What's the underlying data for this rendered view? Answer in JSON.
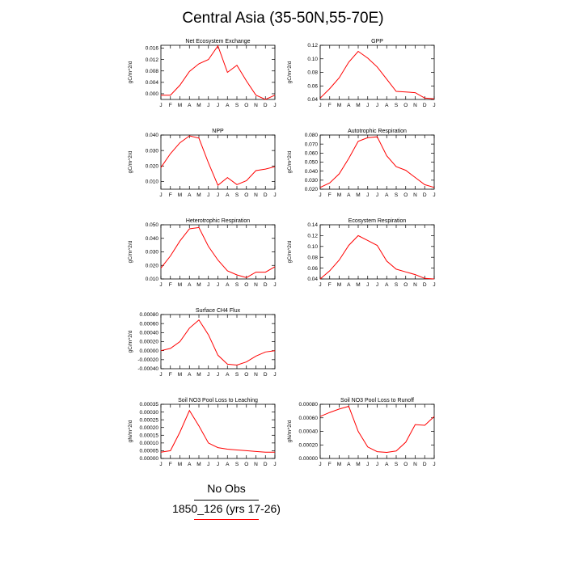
{
  "title": "Central Asia (35-50N,55-70E)",
  "legend": [
    {
      "label": "No Obs",
      "color": "#000000"
    },
    {
      "label": "1850_126 (yrs 17-26)",
      "color": "#ff0000"
    }
  ],
  "chart_data": [
    {
      "type": "line",
      "title": "Net Ecosystem Exchange",
      "ylabel": "gC/m^2/d",
      "categories": [
        "J",
        "F",
        "M",
        "A",
        "M",
        "J",
        "J",
        "A",
        "S",
        "O",
        "N",
        "D",
        "J"
      ],
      "ylim": [
        -0.002,
        0.017
      ],
      "yticks": [
        "0.016",
        "0.012",
        "0.008",
        "0.004",
        "0.000"
      ],
      "ytick_values": [
        0.016,
        0.012,
        0.008,
        0.004,
        0.0
      ],
      "series": [
        {
          "color": "#ff0000",
          "values": [
            -0.0005,
            -0.0005,
            0.003,
            0.0078,
            0.0105,
            0.012,
            0.0168,
            0.0075,
            0.01,
            0.0045,
            -0.0005,
            -0.002,
            -0.0005
          ]
        }
      ]
    },
    {
      "type": "line",
      "title": "GPP",
      "ylabel": "gC/m^2/d",
      "categories": [
        "J",
        "F",
        "M",
        "A",
        "M",
        "J",
        "J",
        "A",
        "S",
        "O",
        "N",
        "D",
        "J"
      ],
      "ylim": [
        0.04,
        0.12
      ],
      "yticks": [
        "0.12",
        "0.10",
        "0.08",
        "0.06",
        "0.04"
      ],
      "ytick_values": [
        0.12,
        0.1,
        0.08,
        0.06,
        0.04
      ],
      "series": [
        {
          "color": "#ff0000",
          "values": [
            0.042,
            0.056,
            0.072,
            0.095,
            0.111,
            0.101,
            0.088,
            0.07,
            0.052,
            0.051,
            0.05,
            0.042,
            0.041
          ]
        }
      ]
    },
    {
      "type": "line",
      "title": "NPP",
      "ylabel": "gC/m^2/d",
      "categories": [
        "J",
        "F",
        "M",
        "A",
        "M",
        "J",
        "J",
        "A",
        "S",
        "O",
        "N",
        "D",
        "J"
      ],
      "ylim": [
        0.005,
        0.04
      ],
      "yticks": [
        "0.040",
        "0.030",
        "0.020",
        "0.010"
      ],
      "ytick_values": [
        0.04,
        0.03,
        0.02,
        0.01
      ],
      "series": [
        {
          "color": "#ff0000",
          "values": [
            0.019,
            0.028,
            0.035,
            0.0395,
            0.038,
            0.022,
            0.0075,
            0.0125,
            0.008,
            0.0105,
            0.017,
            0.018,
            0.0195
          ]
        }
      ]
    },
    {
      "type": "line",
      "title": "Autotrophic Respiration",
      "ylabel": "gC/m^2/d",
      "categories": [
        "J",
        "F",
        "M",
        "A",
        "M",
        "J",
        "J",
        "A",
        "S",
        "O",
        "N",
        "D",
        "J"
      ],
      "ylim": [
        0.02,
        0.08
      ],
      "yticks": [
        "0.080",
        "0.070",
        "0.060",
        "0.050",
        "0.040",
        "0.030",
        "0.020"
      ],
      "ytick_values": [
        0.08,
        0.07,
        0.06,
        0.05,
        0.04,
        0.03,
        0.02
      ],
      "series": [
        {
          "color": "#ff0000",
          "values": [
            0.022,
            0.027,
            0.037,
            0.054,
            0.073,
            0.077,
            0.078,
            0.057,
            0.045,
            0.041,
            0.033,
            0.025,
            0.022
          ]
        }
      ]
    },
    {
      "type": "line",
      "title": "Heterotrophic Respiration",
      "ylabel": "gC/m^2/d",
      "categories": [
        "J",
        "F",
        "M",
        "A",
        "M",
        "J",
        "J",
        "A",
        "S",
        "O",
        "N",
        "D",
        "J"
      ],
      "ylim": [
        0.01,
        0.05
      ],
      "yticks": [
        "0.050",
        "0.040",
        "0.030",
        "0.020",
        "0.010"
      ],
      "ytick_values": [
        0.05,
        0.04,
        0.03,
        0.02,
        0.01
      ],
      "series": [
        {
          "color": "#ff0000",
          "values": [
            0.018,
            0.027,
            0.038,
            0.047,
            0.048,
            0.034,
            0.024,
            0.016,
            0.013,
            0.011,
            0.015,
            0.015,
            0.019
          ]
        }
      ]
    },
    {
      "type": "line",
      "title": "Ecosystem Respiration",
      "ylabel": "gC/m^2/d",
      "categories": [
        "J",
        "F",
        "M",
        "A",
        "M",
        "J",
        "J",
        "A",
        "S",
        "O",
        "N",
        "D",
        "J"
      ],
      "ylim": [
        0.04,
        0.14
      ],
      "yticks": [
        "0.14",
        "0.12",
        "0.10",
        "0.08",
        "0.06",
        "0.04"
      ],
      "ytick_values": [
        0.14,
        0.12,
        0.1,
        0.08,
        0.06,
        0.04
      ],
      "series": [
        {
          "color": "#ff0000",
          "values": [
            0.04,
            0.055,
            0.075,
            0.102,
            0.12,
            0.111,
            0.102,
            0.073,
            0.058,
            0.053,
            0.048,
            0.041,
            0.04
          ]
        }
      ]
    },
    {
      "type": "line",
      "title": "Surface CH4 Flux",
      "ylabel": "gC/m^2/d",
      "categories": [
        "J",
        "F",
        "M",
        "A",
        "M",
        "J",
        "J",
        "A",
        "S",
        "O",
        "N",
        "D",
        "J"
      ],
      "ylim": [
        -0.0004,
        0.0008
      ],
      "yticks": [
        "0.00080",
        "0.00060",
        "0.00040",
        "0.00020",
        "0.00000",
        "-0.00020",
        "-0.00040"
      ],
      "ytick_values": [
        0.0008,
        0.0006,
        0.0004,
        0.0002,
        0.0,
        -0.0002,
        -0.0004
      ],
      "series": [
        {
          "color": "#ff0000",
          "values": [
            0.0,
            5e-05,
            0.0002,
            0.0005,
            0.00068,
            0.00035,
            -0.0001,
            -0.0003,
            -0.00032,
            -0.00025,
            -0.00012,
            -3e-05,
            0.0
          ]
        }
      ]
    },
    {
      "type": "line",
      "title": "Soil NO3 Pool Loss to Leaching",
      "ylabel": "gN/m^2/d",
      "categories": [
        "J",
        "F",
        "M",
        "A",
        "M",
        "J",
        "J",
        "A",
        "S",
        "O",
        "N",
        "D",
        "J"
      ],
      "ylim": [
        0.0,
        0.00035
      ],
      "yticks": [
        "0.00035",
        "0.00030",
        "0.00025",
        "0.00020",
        "0.00015",
        "0.00010",
        "0.00005",
        "0.00000"
      ],
      "ytick_values": [
        0.00035,
        0.0003,
        0.00025,
        0.0002,
        0.00015,
        0.0001,
        5e-05,
        0.0
      ],
      "series": [
        {
          "color": "#ff0000",
          "values": [
            4e-05,
            5e-05,
            0.00017,
            0.00031,
            0.00021,
            0.0001,
            7e-05,
            6e-05,
            5.5e-05,
            5e-05,
            4.5e-05,
            4e-05,
            4e-05
          ]
        }
      ]
    },
    {
      "type": "line",
      "title": "Soil NO3 Pool Loss to Runoff",
      "ylabel": "gN/m^2/d",
      "categories": [
        "J",
        "F",
        "M",
        "A",
        "M",
        "J",
        "J",
        "A",
        "S",
        "O",
        "N",
        "D",
        "J"
      ],
      "ylim": [
        0.0,
        0.0008
      ],
      "yticks": [
        "0.00080",
        "0.00060",
        "0.00040",
        "0.00020",
        "0.00000"
      ],
      "ytick_values": [
        0.0008,
        0.0006,
        0.0004,
        0.0002,
        0.0
      ],
      "series": [
        {
          "color": "#ff0000",
          "values": [
            0.00062,
            0.00068,
            0.00073,
            0.00077,
            0.0004,
            0.00017,
            0.0001,
            9e-05,
            0.00011,
            0.00024,
            0.0005,
            0.00049,
            0.00062
          ]
        }
      ]
    }
  ]
}
